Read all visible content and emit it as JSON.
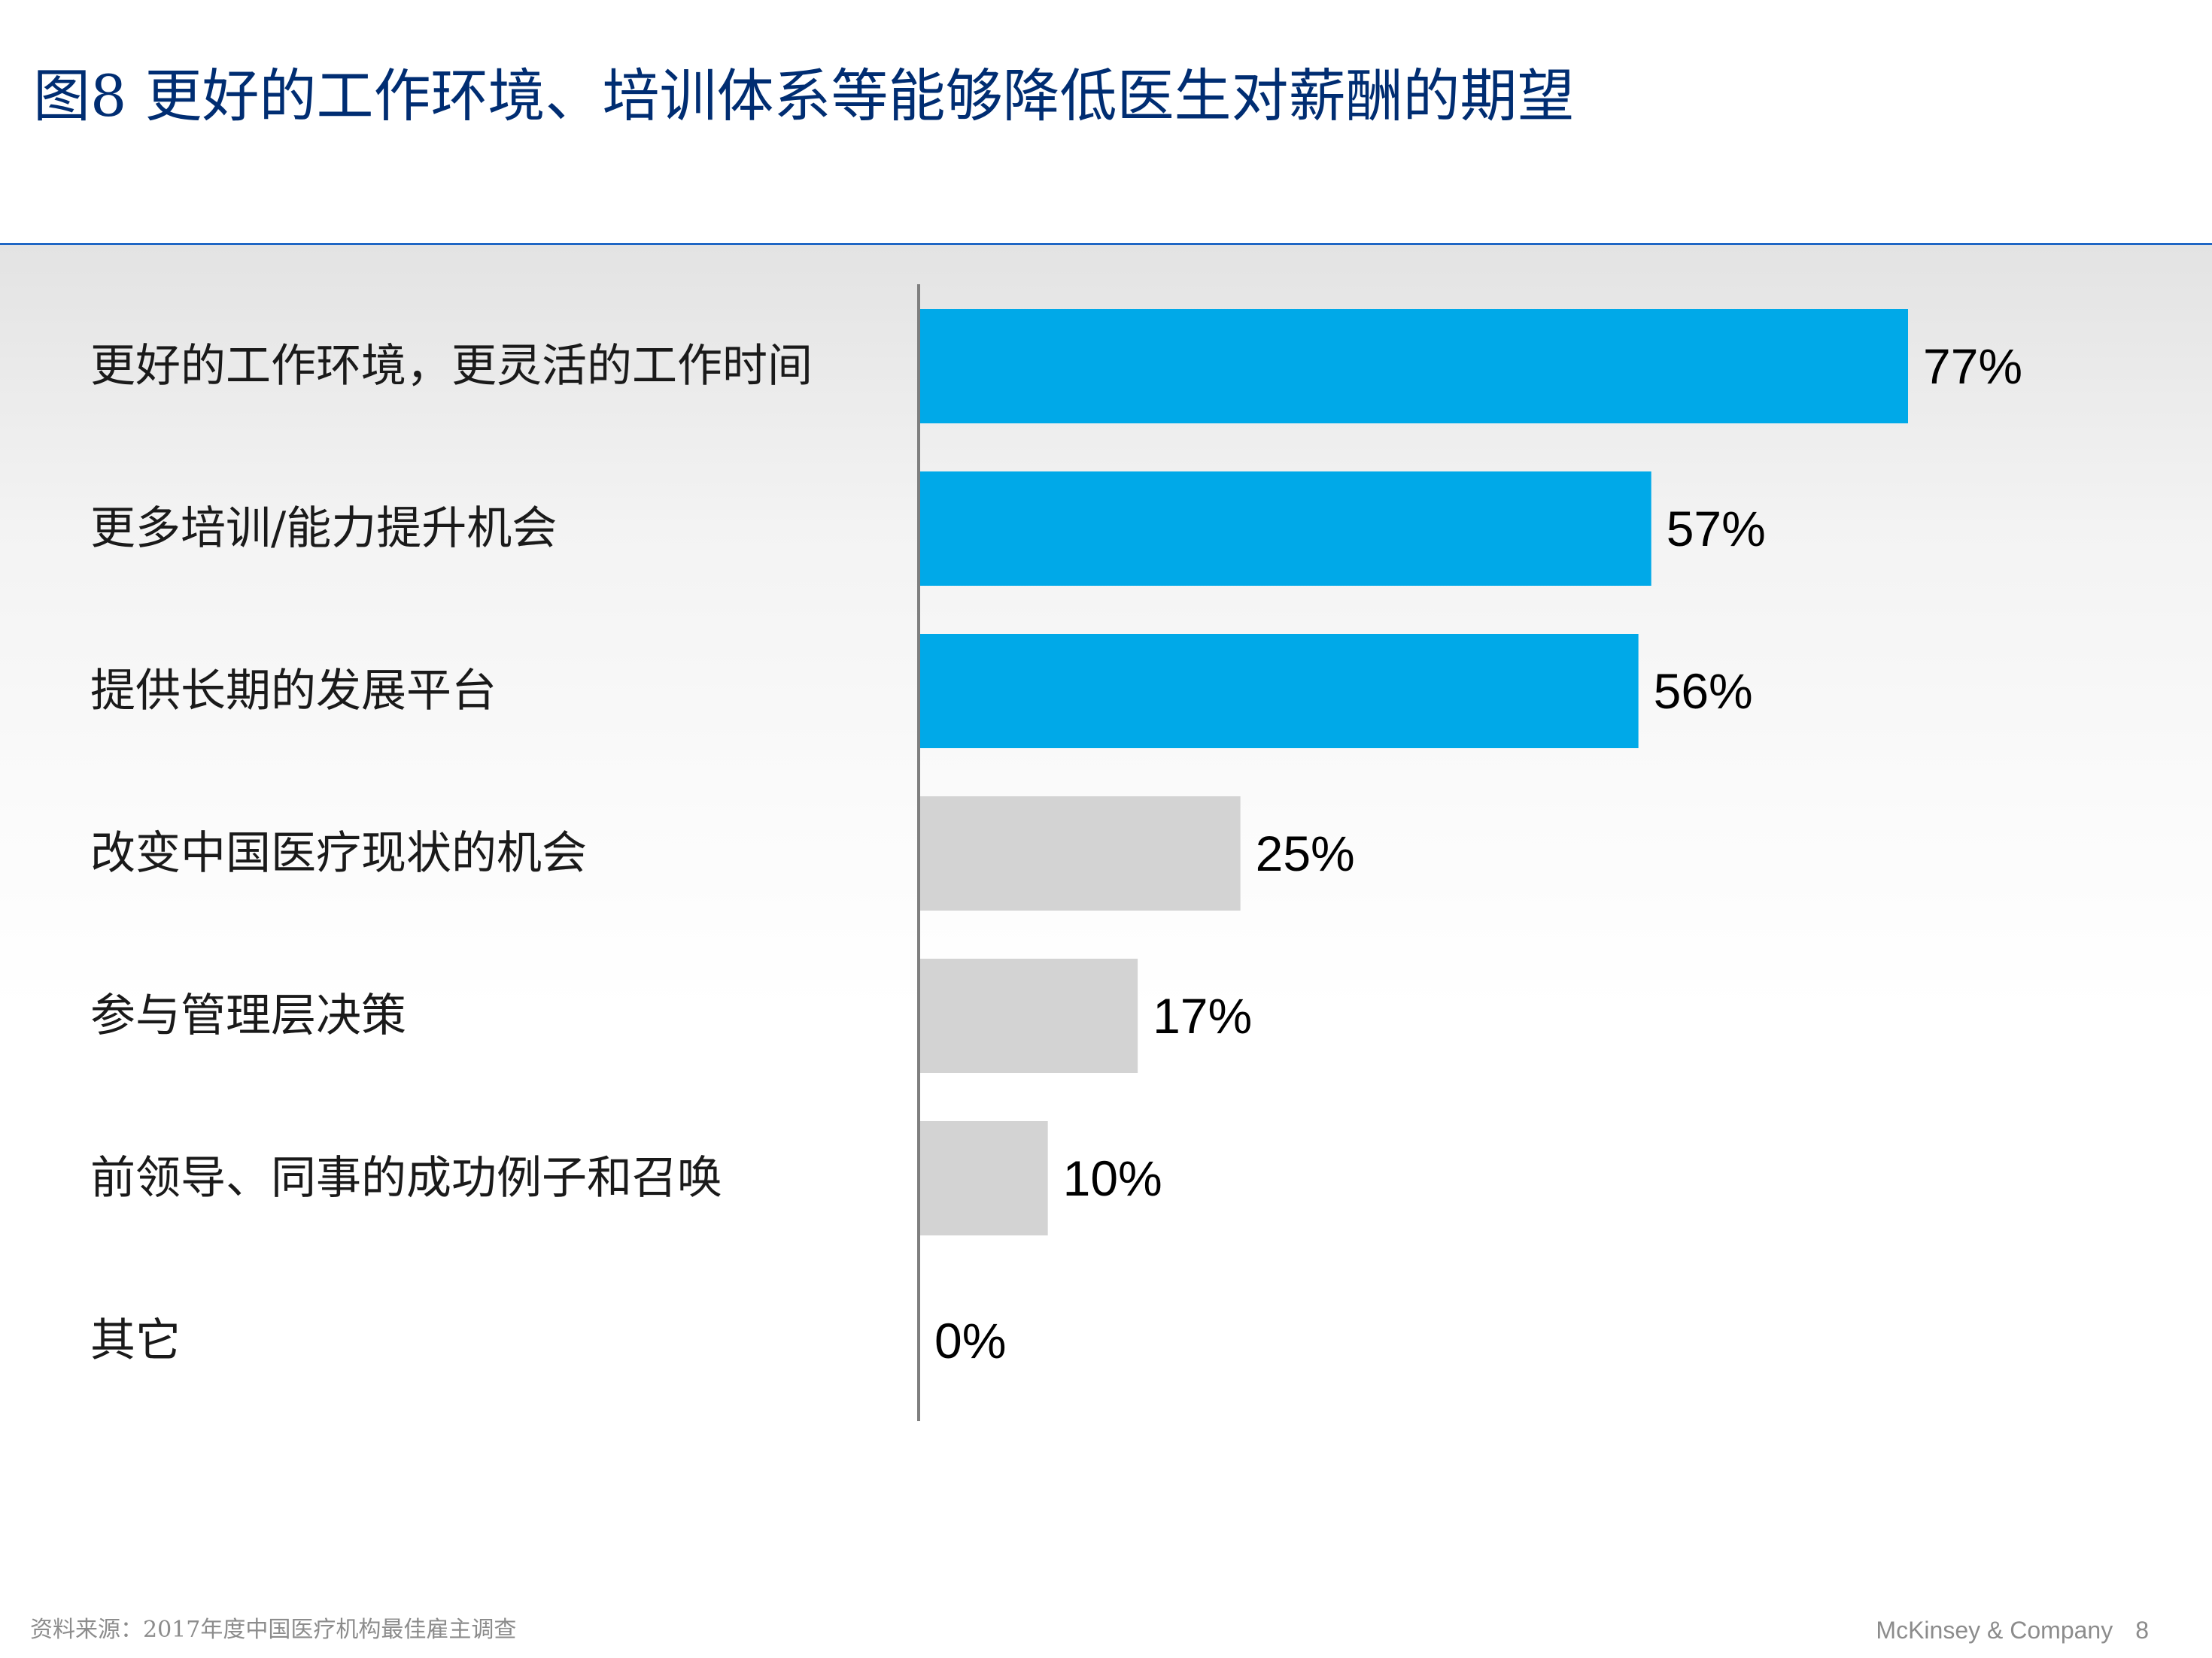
{
  "slide": {
    "title": "图8 更好的工作环境、培训体系等能够降低医生对薪酬的期望",
    "source": "资料来源：2017年度中国医疗机构最佳雇主调查",
    "brand": "McKinsey & Company",
    "page_number": "8"
  },
  "colors": {
    "title": "#002d72",
    "rule": "#1f66c4",
    "highlight_bar": "#00a9e8",
    "other_bar": "#d3d3d3",
    "axis": "#7f7f7f"
  },
  "chart_data": {
    "type": "bar",
    "orientation": "horizontal",
    "categories": [
      "更好的工作环境，更灵活的工作时间",
      "更多培训/能力提升机会",
      "提供长期的发展平台",
      "改变中国医疗现状的机会",
      "参与管理层决策",
      "前领导、同事的成功例子和召唤",
      "其它"
    ],
    "values": [
      77,
      57,
      56,
      25,
      17,
      10,
      0
    ],
    "value_labels": [
      "77%",
      "57%",
      "56%",
      "25%",
      "17%",
      "10%",
      "0%"
    ],
    "highlighted": [
      true,
      true,
      true,
      false,
      false,
      false,
      false
    ],
    "unit": "%",
    "xlim": [
      0,
      100
    ],
    "grid": false,
    "legend": "none"
  }
}
